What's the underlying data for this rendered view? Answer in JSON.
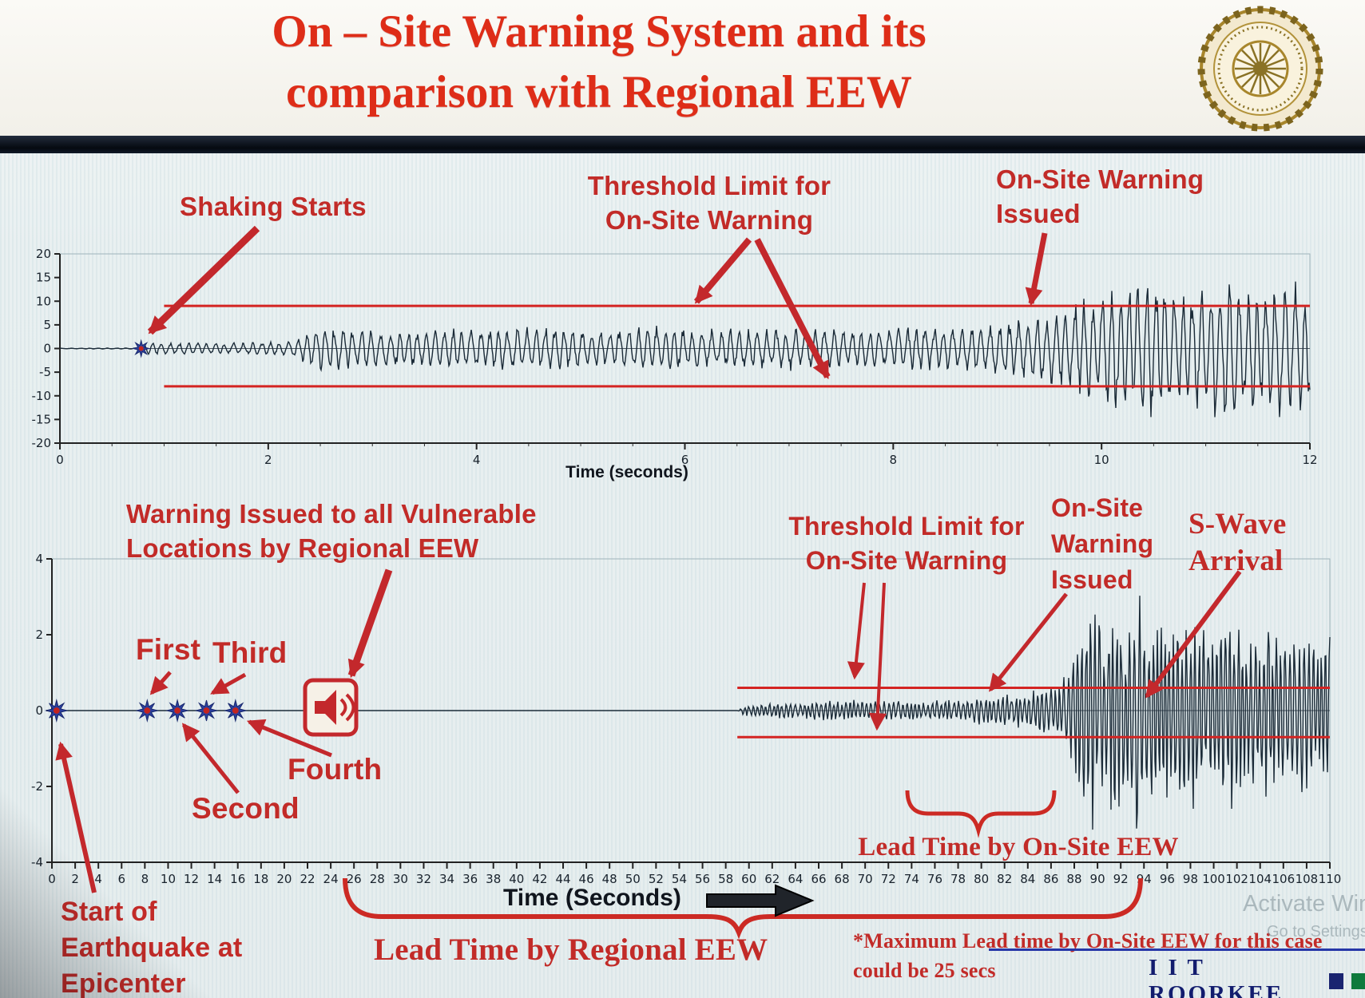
{
  "header": {
    "title_line1": "On – Site Warning System and its",
    "title_line2": "comparison with Regional EEW"
  },
  "colors": {
    "title_red": "#de2d18",
    "annotation_red": "#c22b28",
    "threshold_red": "#d42422",
    "waveform_navy": "#1b2b38",
    "brand_navy": "#1a2470",
    "brand_green": "#0e7a3c",
    "marker_blue": "#2b3f9e"
  },
  "chart_data": [
    {
      "type": "line",
      "name": "on-site-accelerogram",
      "xlabel": "Time (seconds)",
      "xlim": [
        0,
        12
      ],
      "ylim": [
        -20,
        20
      ],
      "xticks": [
        0,
        2,
        4,
        6,
        8,
        10,
        12
      ],
      "minor_x_step": 0.5,
      "yticks": [
        20,
        15,
        10,
        5,
        0,
        -5,
        -10,
        -15,
        -20
      ],
      "threshold_upper": 9,
      "threshold_lower": -8,
      "threshold_start_time": 1.0,
      "events": {
        "shaking_starts_time": 0.78,
        "onsite_warning_issued_time": 9.3
      },
      "markers": [
        {
          "name": "shaking-start",
          "t": 0.78,
          "r": 10
        }
      ],
      "envelope": [
        [
          0,
          0.06
        ],
        [
          0.72,
          0.12
        ],
        [
          0.85,
          1.4
        ],
        [
          1.6,
          1.2
        ],
        [
          2.2,
          1.5
        ],
        [
          2.55,
          5.2
        ],
        [
          3.1,
          3.6
        ],
        [
          3.8,
          4.4
        ],
        [
          4.6,
          4.8
        ],
        [
          5.2,
          4.0
        ],
        [
          5.8,
          5.0
        ],
        [
          6.4,
          4.2
        ],
        [
          7.0,
          4.8
        ],
        [
          7.6,
          4.0
        ],
        [
          8.2,
          4.6
        ],
        [
          8.8,
          5.2
        ],
        [
          9.3,
          6.5
        ],
        [
          9.7,
          9.5
        ],
        [
          10.1,
          13.5
        ],
        [
          10.45,
          16.5
        ],
        [
          10.8,
          11.5
        ],
        [
          11.15,
          17.0
        ],
        [
          11.5,
          12.5
        ],
        [
          11.75,
          15.5
        ],
        [
          12,
          13.0
        ]
      ],
      "phase_step": 0.55,
      "seed": 7
    },
    {
      "type": "line",
      "name": "regional-eew-accelerogram",
      "xlabel": "Time (Seconds)",
      "xlim": [
        0,
        110
      ],
      "ylim": [
        -4,
        4
      ],
      "xticks": [
        0,
        2,
        4,
        6,
        8,
        10,
        12,
        14,
        16,
        18,
        20,
        22,
        24,
        26,
        28,
        30,
        32,
        34,
        36,
        38,
        40,
        42,
        44,
        46,
        48,
        50,
        52,
        54,
        56,
        58,
        60,
        62,
        64,
        66,
        68,
        70,
        72,
        74,
        76,
        78,
        80,
        82,
        84,
        86,
        88,
        90,
        92,
        94,
        96,
        98,
        100,
        102,
        104,
        106,
        108,
        110
      ],
      "yticks": [
        4,
        2,
        0,
        -2,
        -4
      ],
      "threshold_upper": 0.6,
      "threshold_lower": -0.7,
      "threshold_start_time": 59,
      "events": {
        "start_of_earthquake_time": 0.4,
        "p_wave_detections": [
          {
            "order": "First",
            "t": 8.2
          },
          {
            "order": "Second",
            "t": 10.8
          },
          {
            "order": "Third",
            "t": 13.3
          },
          {
            "order": "Fourth",
            "t": 15.8
          }
        ],
        "regional_warning_issued_time": 24,
        "onsite_warning_issued_time": 80,
        "s_wave_arrival_time": 93,
        "max_onsite_lead_time_secs": 25
      },
      "markers": [
        {
          "name": "epicenter",
          "t": 0.4,
          "r": 13
        },
        {
          "name": "first-detection",
          "t": 8.2,
          "r": 13
        },
        {
          "name": "second-detection",
          "t": 10.8,
          "r": 13
        },
        {
          "name": "third-detection",
          "t": 13.3,
          "r": 13
        },
        {
          "name": "fourth-detection",
          "t": 15.8,
          "r": 13
        }
      ],
      "envelope": [
        [
          0,
          0
        ],
        [
          59,
          0
        ],
        [
          59.6,
          0.14
        ],
        [
          62,
          0.2
        ],
        [
          66,
          0.26
        ],
        [
          70,
          0.3
        ],
        [
          74,
          0.24
        ],
        [
          78,
          0.3
        ],
        [
          81,
          0.42
        ],
        [
          84,
          0.5
        ],
        [
          86,
          0.7
        ],
        [
          87.5,
          1.1
        ],
        [
          88.5,
          2.4
        ],
        [
          89.5,
          3.4
        ],
        [
          90.5,
          2.2
        ],
        [
          91.5,
          3.0
        ],
        [
          92.5,
          2.0
        ],
        [
          93.5,
          3.6
        ],
        [
          94.5,
          2.4
        ],
        [
          95.5,
          3.2
        ],
        [
          97,
          2.2
        ],
        [
          98.5,
          3.0
        ],
        [
          100,
          2.0
        ],
        [
          101.5,
          2.9
        ],
        [
          103,
          1.9
        ],
        [
          104.5,
          2.6
        ],
        [
          106,
          1.8
        ],
        [
          107.5,
          2.4
        ],
        [
          109,
          1.8
        ],
        [
          110,
          2.2
        ]
      ],
      "phase_step": 1.15,
      "seed": 13
    }
  ],
  "annotations": {
    "shaking_starts": "Shaking Starts",
    "threshold_top_1": "Threshold Limit for",
    "threshold_top_2": "On-Site Warning",
    "onsite_top_1": "On-Site Warning",
    "onsite_top_2": "Issued",
    "regional_1": "Warning Issued to all Vulnerable",
    "regional_2": "Locations by Regional EEW",
    "first": "First",
    "second": "Second",
    "third": "Third",
    "fourth": "Fourth",
    "threshold_bot_1": "Threshold Limit for",
    "threshold_bot_2": "On-Site Warning",
    "onsite_bot_1": "On-Site",
    "onsite_bot_2": "Warning",
    "onsite_bot_3": "Issued",
    "swave_1": "S-Wave",
    "swave_2": "Arrival",
    "lead_onsite": "Lead Time by On-Site EEW",
    "lead_regional": "Lead Time by Regional EEW",
    "start_epi_1": "Start of",
    "start_epi_2": "Earthquake at",
    "start_epi_3": "Epicenter",
    "note_1": "*Maximum Lead time by On-Site EEW for this case",
    "note_2": "could be 25 secs"
  },
  "footer": {
    "brand": "I I T ROORKEE"
  },
  "watermark": {
    "line1": "Activate Win",
    "line2": "Go to Settings"
  }
}
